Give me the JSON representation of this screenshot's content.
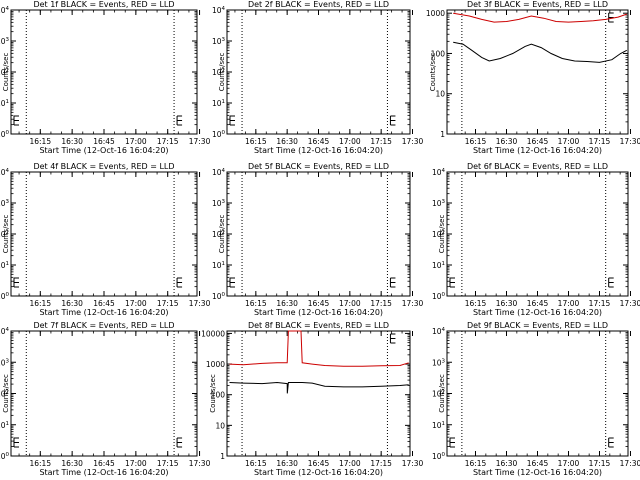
{
  "chart_data": [
    {
      "type": "line",
      "title": "Det 1f BLACK = Events, RED = LLD",
      "ylabel": "Counts/sec",
      "xlabel": "Start Time (12-Oct-16 16:04:20)",
      "yscale": "log",
      "ylim": [
        1,
        10000
      ],
      "xlim": [
        16.02,
        17.48
      ],
      "dotted_x": [
        16.14,
        17.3
      ],
      "x_ticks": [
        "16:15",
        "16:30",
        "16:45",
        "17:00",
        "17:15",
        "17:30"
      ],
      "y_tick_labels": [
        "10^0",
        "10^1",
        "10^2",
        "10^3",
        "10^4"
      ],
      "series": []
    },
    {
      "type": "line",
      "title": "Det 2f BLACK = Events, RED = LLD",
      "ylabel": "Counts/sec",
      "xlabel": "Start Time (12-Oct-16 16:04:20)",
      "yscale": "log",
      "ylim": [
        1,
        10000
      ],
      "xlim": [
        16.02,
        17.48
      ],
      "dotted_x": [
        16.14,
        17.3
      ],
      "x_ticks": [
        "16:15",
        "16:30",
        "16:45",
        "17:00",
        "17:15",
        "17:30"
      ],
      "y_tick_labels": [
        "10^0",
        "10^1",
        "10^2",
        "10^3",
        "10^4"
      ],
      "series": []
    },
    {
      "type": "line",
      "title": "Det 3f BLACK = Events, RED = LLD",
      "ylabel": "Counts/sec",
      "xlabel": "Start Time (12-Oct-16 16:04:20)",
      "yscale": "log",
      "ylim": [
        1,
        1200
      ],
      "xlim": [
        16.02,
        17.48
      ],
      "dotted_x": [
        16.14,
        17.3
      ],
      "x_ticks": [
        "16:15",
        "16:30",
        "16:45",
        "17:00",
        "17:15",
        "17:30"
      ],
      "y_tick_labels": [
        "1",
        "10",
        "100",
        "1000"
      ],
      "series": [
        {
          "color": "#cc0000",
          "x": [
            16.07,
            16.2,
            16.3,
            16.4,
            16.5,
            16.6,
            16.7,
            16.8,
            16.9,
            17.0,
            17.1,
            17.2,
            17.3,
            17.4,
            17.47
          ],
          "y": [
            1000,
            850,
            700,
            600,
            620,
            700,
            850,
            750,
            620,
            600,
            620,
            650,
            700,
            800,
            950
          ]
        },
        {
          "color": "#000000",
          "x": [
            16.07,
            16.15,
            16.22,
            16.3,
            16.36,
            16.45,
            16.55,
            16.65,
            16.7,
            16.78,
            16.86,
            16.95,
            17.05,
            17.15,
            17.25,
            17.35,
            17.42,
            17.47
          ],
          "y": [
            190,
            170,
            120,
            80,
            65,
            75,
            100,
            150,
            170,
            140,
            100,
            75,
            65,
            63,
            60,
            70,
            100,
            120
          ]
        }
      ]
    },
    {
      "type": "line",
      "title": "Det 4f BLACK = Events, RED = LLD",
      "ylabel": "Counts/sec",
      "xlabel": "Start Time (12-Oct-16 16:04:20)",
      "yscale": "log",
      "ylim": [
        1,
        10000
      ],
      "xlim": [
        16.02,
        17.48
      ],
      "dotted_x": [
        16.14,
        17.3
      ],
      "x_ticks": [
        "16:15",
        "16:30",
        "16:45",
        "17:00",
        "17:15",
        "17:30"
      ],
      "y_tick_labels": [
        "10^0",
        "10^1",
        "10^2",
        "10^3",
        "10^4"
      ],
      "series": []
    },
    {
      "type": "line",
      "title": "Det 5f BLACK = Events, RED = LLD",
      "ylabel": "Counts/sec",
      "xlabel": "Start Time (12-Oct-16 16:04:20)",
      "yscale": "log",
      "ylim": [
        1,
        10000
      ],
      "xlim": [
        16.02,
        17.48
      ],
      "dotted_x": [
        16.14,
        17.3
      ],
      "x_ticks": [
        "16:15",
        "16:30",
        "16:45",
        "17:00",
        "17:15",
        "17:30"
      ],
      "y_tick_labels": [
        "10^0",
        "10^1",
        "10^2",
        "10^3",
        "10^4"
      ],
      "series": []
    },
    {
      "type": "line",
      "title": "Det 6f BLACK = Events, RED = LLD",
      "ylabel": "Counts/sec",
      "xlabel": "Start Time (12-Oct-16 16:04:20)",
      "yscale": "log",
      "ylim": [
        1,
        10000
      ],
      "xlim": [
        16.02,
        17.48
      ],
      "dotted_x": [
        16.14,
        17.3
      ],
      "x_ticks": [
        "16:15",
        "16:30",
        "16:45",
        "17:00",
        "17:15",
        "17:30"
      ],
      "y_tick_labels": [
        "10^0",
        "10^1",
        "10^2",
        "10^3",
        "10^4"
      ],
      "series": []
    },
    {
      "type": "line",
      "title": "Det 7f BLACK = Events, RED = LLD",
      "ylabel": "Counts/sec",
      "xlabel": "Start Time (12-Oct-16 16:04:20)",
      "yscale": "log",
      "ylim": [
        1,
        10000
      ],
      "xlim": [
        16.02,
        17.48
      ],
      "dotted_x": [
        16.14,
        17.3
      ],
      "x_ticks": [
        "16:15",
        "16:30",
        "16:45",
        "17:00",
        "17:15",
        "17:30"
      ],
      "y_tick_labels": [
        "10^0",
        "10^1",
        "10^2",
        "10^3",
        "10^4"
      ],
      "series": []
    },
    {
      "type": "line",
      "title": "Det 8f BLACK = Events, RED = LLD",
      "ylabel": "Counts/sec",
      "xlabel": "Start Time (12-Oct-16 16:04:20)",
      "yscale": "log",
      "ylim": [
        1,
        12000
      ],
      "xlim": [
        16.02,
        17.48
      ],
      "dotted_x": [
        16.14,
        17.3
      ],
      "x_ticks": [
        "16:15",
        "16:30",
        "16:45",
        "17:00",
        "17:15",
        "17:30"
      ],
      "y_tick_labels": [
        "1",
        "10",
        "100",
        "1000",
        "10000"
      ],
      "series": [
        {
          "color": "#cc0000",
          "x": [
            16.04,
            16.15,
            16.3,
            16.42,
            16.5,
            16.51,
            16.61,
            16.62,
            16.7,
            16.8,
            16.95,
            17.1,
            17.25,
            17.4,
            17.47
          ],
          "y": [
            1000,
            950,
            1050,
            1100,
            1100,
            12000,
            12000,
            1100,
            1000,
            900,
            850,
            850,
            880,
            900,
            1100
          ]
        },
        {
          "color": "#000000",
          "x": [
            16.04,
            16.15,
            16.3,
            16.42,
            16.5,
            16.501,
            16.51,
            16.62,
            16.7,
            16.8,
            16.95,
            17.1,
            17.25,
            17.4,
            17.47
          ],
          "y": [
            250,
            240,
            230,
            250,
            230,
            110,
            250,
            250,
            240,
            190,
            180,
            180,
            190,
            200,
            210
          ]
        }
      ]
    },
    {
      "type": "line",
      "title": "Det 9f BLACK = Events, RED = LLD",
      "ylabel": "Counts/sec",
      "xlabel": "Start Time (12-Oct-16 16:04:20)",
      "yscale": "log",
      "ylim": [
        1,
        10000
      ],
      "xlim": [
        16.02,
        17.48
      ],
      "dotted_x": [
        16.14,
        17.3
      ],
      "x_ticks": [
        "16:15",
        "16:30",
        "16:45",
        "17:00",
        "17:15",
        "17:30"
      ],
      "y_tick_labels": [
        "10^0",
        "10^1",
        "10^2",
        "10^3",
        "10^4"
      ],
      "series": []
    }
  ]
}
